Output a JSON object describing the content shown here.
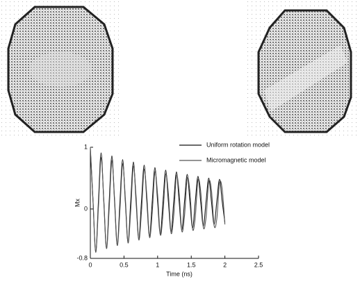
{
  "chart_data": {
    "type": "line",
    "y_label": "Mx",
    "x_label": "Time (ns)",
    "xlim": [
      0,
      2.5
    ],
    "xticks": [
      0,
      0.5,
      1,
      1.5,
      2,
      2.5
    ],
    "ylim": [
      -0.8,
      1
    ],
    "yticks": [
      -0.8,
      0,
      1
    ],
    "x": [
      0,
      0.04,
      0.08,
      0.12,
      0.16,
      0.2,
      0.24,
      0.28,
      0.32,
      0.36,
      0.4,
      0.44,
      0.48,
      0.52,
      0.56,
      0.6,
      0.64,
      0.68,
      0.72,
      0.76,
      0.8,
      0.84,
      0.88,
      0.92,
      0.96,
      1,
      1.04,
      1.08,
      1.12,
      1.16,
      1.2,
      1.24,
      1.28,
      1.32,
      1.36,
      1.4,
      1.44,
      1.48,
      1.52,
      1.56,
      1.6,
      1.64,
      1.68,
      1.72,
      1.76,
      1.8,
      1.84,
      1.88,
      1.92,
      1.96,
      2
    ],
    "series": [
      {
        "name": "Uniform rotation model",
        "color": "#111111",
        "values": [
          0.97,
          0.12,
          -0.7,
          0.12,
          0.91,
          0.12,
          -0.64,
          0.12,
          0.86,
          0.12,
          -0.59,
          0.12,
          0.8,
          0.12,
          -0.54,
          0.12,
          0.76,
          0.12,
          -0.49,
          0.12,
          0.71,
          0.12,
          -0.45,
          0.12,
          0.67,
          0.12,
          -0.41,
          0.12,
          0.63,
          0.12,
          -0.37,
          0.12,
          0.6,
          0.12,
          -0.34,
          0.12,
          0.56,
          0.12,
          -0.31,
          0.12,
          0.53,
          0.12,
          -0.28,
          0.12,
          0.5,
          0.12,
          -0.25,
          0.12,
          0.48,
          0.12,
          -0.22
        ]
      },
      {
        "name": "Micromagnetic model",
        "color": "#555555",
        "values": [
          1,
          0.13,
          -0.7,
          0.02,
          0.83,
          0.15,
          -0.64,
          0,
          0.78,
          0.17,
          -0.59,
          -0.01,
          0.73,
          0.18,
          -0.55,
          -0.03,
          0.69,
          0.2,
          -0.5,
          -0.05,
          0.64,
          0.21,
          -0.46,
          -0.06,
          0.6,
          0.23,
          -0.42,
          -0.08,
          0.56,
          0.25,
          -0.39,
          -0.1,
          0.54,
          0.26,
          -0.36,
          -0.11,
          0.5,
          0.28,
          -0.33,
          -0.13,
          0.47,
          0.29,
          -0.3,
          -0.14,
          0.44,
          0.31,
          -0.27,
          -0.16,
          0.42,
          0.32,
          -0.25
        ]
      }
    ]
  }
}
